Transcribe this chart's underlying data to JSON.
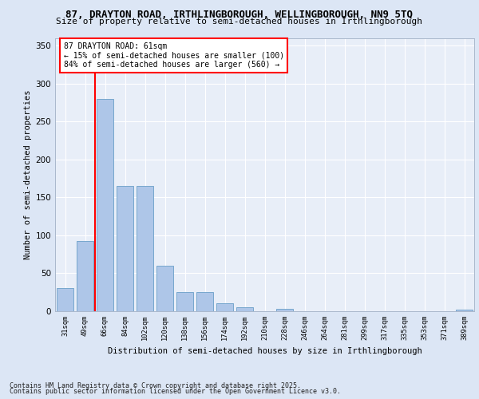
{
  "title1": "87, DRAYTON ROAD, IRTHLINGBOROUGH, WELLINGBOROUGH, NN9 5TQ",
  "title2": "Size of property relative to semi-detached houses in Irthlingborough",
  "xlabel": "Distribution of semi-detached houses by size in Irthlingborough",
  "ylabel": "Number of semi-detached properties",
  "categories": [
    "31sqm",
    "49sqm",
    "66sqm",
    "84sqm",
    "102sqm",
    "120sqm",
    "138sqm",
    "156sqm",
    "174sqm",
    "192sqm",
    "210sqm",
    "228sqm",
    "246sqm",
    "264sqm",
    "281sqm",
    "299sqm",
    "317sqm",
    "335sqm",
    "353sqm",
    "371sqm",
    "389sqm"
  ],
  "values": [
    30,
    93,
    280,
    165,
    165,
    60,
    25,
    25,
    11,
    5,
    0,
    3,
    0,
    0,
    0,
    0,
    0,
    0,
    0,
    0,
    2
  ],
  "bar_color": "#aec6e8",
  "bar_edge_color": "#6a9fc8",
  "vline_x": 1.5,
  "vline_color": "red",
  "annotation_title": "87 DRAYTON ROAD: 61sqm",
  "annotation_line2": "← 15% of semi-detached houses are smaller (100)",
  "annotation_line3": "84% of semi-detached houses are larger (560) →",
  "annotation_box_color": "white",
  "annotation_box_edge": "red",
  "ylim": [
    0,
    360
  ],
  "yticks": [
    0,
    50,
    100,
    150,
    200,
    250,
    300,
    350
  ],
  "footer1": "Contains HM Land Registry data © Crown copyright and database right 2025.",
  "footer2": "Contains public sector information licensed under the Open Government Licence v3.0.",
  "bg_color": "#dce6f5",
  "plot_bg_color": "#e8eef8"
}
